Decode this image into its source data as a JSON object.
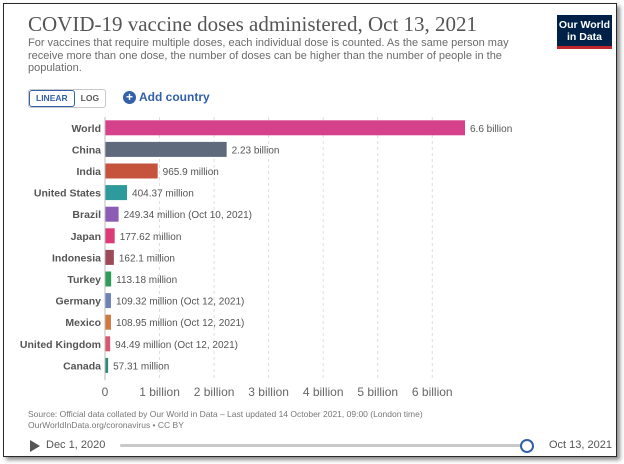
{
  "header": {
    "title": "COVID-19 vaccine doses administered, Oct 13, 2021",
    "subtitle": "For vaccines that require multiple doses, each individual dose is counted. As the same person may receive more than one dose, the number of doses can be higher than the number of people in the population.",
    "logo_line1": "Our World",
    "logo_line2": "in Data"
  },
  "controls": {
    "linear_label": "LINEAR",
    "log_label": "LOG",
    "add_country_label": "Add country"
  },
  "chart_data": {
    "type": "bar",
    "orientation": "horizontal",
    "categories": [
      "World",
      "China",
      "India",
      "United States",
      "Brazil",
      "Japan",
      "Indonesia",
      "Turkey",
      "Germany",
      "Mexico",
      "United Kingdom",
      "Canada"
    ],
    "values": [
      6600000000,
      2230000000,
      965900000,
      404370000,
      249340000,
      177620000,
      162100000,
      113180000,
      109320000,
      108950000,
      94490000,
      57310000
    ],
    "value_labels": [
      "6.6 billion",
      "2.23 billion",
      "965.9 million",
      "404.37 million",
      "249.34 million (Oct 10, 2021)",
      "177.62 million",
      "162.1 million",
      "113.18 million",
      "109.32 million (Oct 12, 2021)",
      "108.95 million (Oct 12, 2021)",
      "94.49 million (Oct 12, 2021)",
      "57.31 million"
    ],
    "colors": [
      "#d5418b",
      "#5f6a7d",
      "#c6533c",
      "#2e9a9b",
      "#8c5cb4",
      "#dd3a7a",
      "#9c4a57",
      "#2f9a5a",
      "#6c83b8",
      "#cf7a3c",
      "#db5570",
      "#2f8a78"
    ],
    "x_ticks": [
      0,
      1000000000,
      2000000000,
      3000000000,
      4000000000,
      5000000000,
      6000000000
    ],
    "x_tick_labels": [
      "0",
      "1 billion",
      "2 billion",
      "3 billion",
      "4 billion",
      "5 billion",
      "6 billion"
    ],
    "xlim": [
      0,
      6600000000
    ],
    "grid": true,
    "scale": "linear"
  },
  "footer": {
    "source_line1": "Source: Official data collated by Our World in Data – Last updated 14 October 2021, 09:00 (London time)",
    "source_line2": "OurWorldInData.org/coronavirus • CC BY"
  },
  "timeline": {
    "start_label": "Dec 1, 2020",
    "end_label": "Oct 13, 2021",
    "progress": 1.0
  }
}
